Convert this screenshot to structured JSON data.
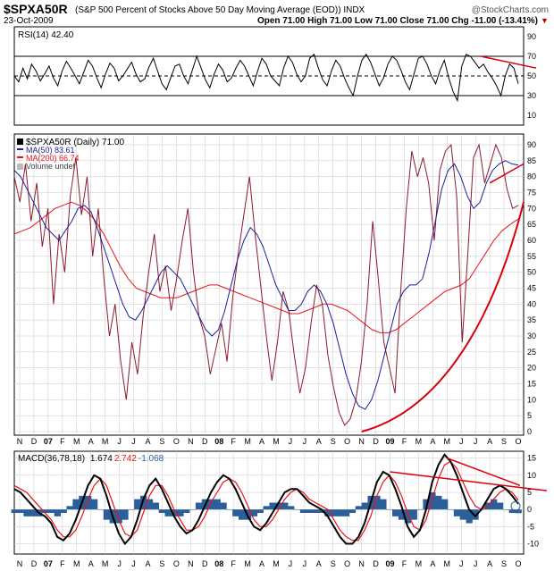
{
  "header": {
    "symbol": "$SPXA50R",
    "description": "(S&P 500 Percent of Stocks Above 50 Day Moving Average (EOD)) INDX",
    "watermark": "@StockCharts.com",
    "date": "23-Oct-2009",
    "ohlc": "Open 71.00  High 71.00  Low 71.00  Close 71.00  Chg -11.00 (-13.41%)",
    "down_marker": "▼"
  },
  "colors": {
    "price": "#8b1a2e",
    "ma50": "#1b1f9a",
    "ma200": "#e8141b",
    "trendline": "#d8000b",
    "macd": "#000000",
    "signal": "#e8141b",
    "histogram": "#2c5f9a",
    "grid": "#c8c8c8"
  },
  "chart_data": [
    {
      "type": "line",
      "panel": "rsi",
      "legend": "RSI(14) 42.40",
      "y_ticks": [
        "90",
        "70",
        "50",
        "30",
        "10"
      ],
      "ylim": [
        0,
        100
      ],
      "reference_lines": [
        70,
        50,
        30
      ],
      "series": [
        {
          "name": "RSI(14)",
          "last": 42.4,
          "values": [
            50,
            44,
            58,
            47,
            62,
            55,
            45,
            52,
            60,
            48,
            40,
            55,
            65,
            58,
            50,
            42,
            54,
            66,
            60,
            48,
            38,
            52,
            63,
            58,
            45,
            50,
            57,
            64,
            52,
            44,
            47,
            59,
            68,
            55,
            42,
            36,
            48,
            60,
            62,
            50,
            42,
            56,
            70,
            58,
            46,
            38,
            52,
            62,
            56,
            44,
            48,
            58,
            66,
            60,
            50,
            40,
            55,
            68,
            62,
            50,
            45,
            40,
            58,
            70,
            64,
            52,
            44,
            50,
            68,
            72,
            58,
            46,
            40,
            55,
            66,
            60,
            48,
            38,
            30,
            50,
            66,
            72,
            64,
            52,
            40,
            48,
            62,
            70,
            66,
            56,
            44,
            36,
            52,
            68,
            70,
            62,
            50,
            42,
            56,
            66,
            48,
            34,
            25,
            60,
            72,
            70,
            64,
            58,
            62,
            54,
            48,
            40,
            30,
            50,
            62,
            58,
            42
          ]
        }
      ]
    },
    {
      "type": "line",
      "panel": "price",
      "legend": [
        "$SPXA50R (Daily) 71.00",
        "MA(50) 83.61",
        "MA(200) 66.74",
        "Volume undef"
      ],
      "y_ticks": [
        "90",
        "85",
        "80",
        "75",
        "70",
        "65",
        "60",
        "55",
        "50",
        "45",
        "40",
        "35",
        "30",
        "25",
        "20",
        "15",
        "10",
        "5",
        "0"
      ],
      "ylim": [
        0,
        90
      ],
      "x_labels": [
        "N",
        "D",
        "07",
        "F",
        "M",
        "A",
        "M",
        "J",
        "J",
        "A",
        "S",
        "O",
        "N",
        "D",
        "08",
        "F",
        "M",
        "A",
        "M",
        "J",
        "J",
        "A",
        "S",
        "O",
        "N",
        "D",
        "09",
        "F",
        "M",
        "A",
        "M",
        "J",
        "J",
        "A",
        "S",
        "O"
      ],
      "series": [
        {
          "name": "$SPXA50R",
          "last": 71.0,
          "values": [
            80,
            72,
            84,
            66,
            78,
            58,
            70,
            40,
            62,
            50,
            74,
            86,
            68,
            80,
            55,
            70,
            48,
            30,
            40,
            22,
            10,
            28,
            18,
            36,
            50,
            62,
            44,
            52,
            38,
            48,
            60,
            70,
            50,
            36,
            30,
            18,
            26,
            34,
            22,
            42,
            56,
            68,
            80,
            62,
            46,
            30,
            16,
            28,
            44,
            38,
            24,
            12,
            20,
            34,
            46,
            40,
            24,
            14,
            6,
            2,
            4,
            10,
            22,
            40,
            66,
            48,
            28,
            20,
            12,
            44,
            70,
            88,
            80,
            86,
            78,
            60,
            82,
            88,
            90,
            74,
            28,
            56,
            86,
            90,
            78,
            84,
            90,
            86,
            76,
            70,
            71
          ]
        },
        {
          "name": "MA(50)",
          "last": 83.61,
          "values": [
            82,
            80,
            76,
            72,
            68,
            64,
            62,
            60,
            63,
            66,
            70,
            71,
            69,
            64,
            58,
            52,
            46,
            40,
            36,
            35,
            38,
            42,
            46,
            50,
            52,
            50,
            48,
            44,
            40,
            36,
            32,
            30,
            32,
            38,
            46,
            54,
            60,
            64,
            62,
            58,
            52,
            46,
            42,
            38,
            38,
            40,
            44,
            46,
            44,
            40,
            34,
            26,
            18,
            12,
            8,
            7,
            10,
            16,
            24,
            32,
            40,
            44,
            46,
            46,
            48,
            56,
            66,
            76,
            82,
            84,
            80,
            74,
            70,
            72,
            78,
            82,
            84,
            85,
            84,
            83.61
          ]
        },
        {
          "name": "MA(200)",
          "last": 66.74,
          "values": [
            62,
            63,
            64,
            66,
            68,
            70,
            71,
            72,
            71,
            69,
            66,
            62,
            57,
            52,
            48,
            45,
            44,
            43,
            42,
            42,
            42,
            43,
            44,
            45,
            46,
            46,
            45,
            44,
            43,
            42,
            41,
            40,
            39,
            38,
            37,
            37,
            38,
            39,
            40,
            40,
            39,
            38,
            36,
            34,
            32,
            31,
            31,
            32,
            34,
            36,
            38,
            40,
            42,
            44,
            45,
            46,
            48,
            52,
            56,
            60,
            63,
            65,
            66.74
          ]
        }
      ],
      "trendlines": [
        {
          "from": [
            "Nov 2008",
            0
          ],
          "to": [
            "Oct 2009",
            72
          ],
          "shape": "curve"
        },
        {
          "from": [
            "Aug 2009",
            78
          ],
          "to": [
            "Oct 2009",
            84
          ],
          "shape": "line"
        }
      ]
    },
    {
      "type": "line",
      "panel": "macd",
      "legend": {
        "label": "MACD(36,78,18)",
        "macd": "1.674",
        "signal": "2.742",
        "hist": "-1.068"
      },
      "y_ticks": [
        "15",
        "10",
        "5",
        "0",
        "-5",
        "-10"
      ],
      "ylim": [
        -13,
        17
      ],
      "x_labels": [
        "N",
        "D",
        "07",
        "F",
        "M",
        "A",
        "M",
        "J",
        "J",
        "A",
        "S",
        "O",
        "N",
        "D",
        "08",
        "F",
        "M",
        "A",
        "M",
        "J",
        "J",
        "A",
        "S",
        "O",
        "N",
        "D",
        "09",
        "F",
        "M",
        "A",
        "M",
        "J",
        "J",
        "A",
        "S",
        "O"
      ],
      "series": [
        {
          "name": "MACD",
          "last": 1.674,
          "values": [
            6,
            5,
            3,
            1,
            -1,
            -2,
            -4,
            -8,
            -9,
            -7,
            -3,
            2,
            7,
            10,
            9,
            4,
            -2,
            -7,
            -10,
            -8,
            -3,
            3,
            7,
            9,
            6,
            2,
            -2,
            -5,
            -7,
            -6,
            -3,
            1,
            5,
            8,
            10,
            9,
            6,
            2,
            -2,
            -5,
            -6,
            -4,
            -1,
            2,
            5,
            6,
            6,
            4,
            2,
            1,
            0,
            -2,
            -5,
            -8,
            -10,
            -10,
            -8,
            -4,
            2,
            8,
            11,
            10,
            6,
            1,
            -5,
            -8,
            -6,
            0,
            8,
            13,
            16,
            14,
            10,
            5,
            0,
            -2,
            0,
            3,
            6,
            7,
            6,
            4,
            1.674
          ]
        },
        {
          "name": "Signal",
          "last": 2.742,
          "values": [
            7,
            6,
            5,
            3,
            1,
            -1,
            -3,
            -6,
            -8,
            -8,
            -6,
            -2,
            3,
            7,
            9,
            7,
            2,
            -3,
            -7,
            -8,
            -6,
            -1,
            4,
            7,
            7,
            4,
            0,
            -3,
            -6,
            -6,
            -5,
            -2,
            2,
            5,
            8,
            9,
            8,
            5,
            1,
            -3,
            -5,
            -5,
            -3,
            0,
            3,
            5,
            6,
            5,
            3,
            2,
            1,
            0,
            -3,
            -6,
            -8,
            -9,
            -9,
            -6,
            -2,
            4,
            8,
            10,
            8,
            4,
            -1,
            -5,
            -6,
            -3,
            3,
            9,
            13,
            14,
            12,
            8,
            4,
            1,
            0,
            1,
            3,
            5,
            6,
            5,
            2.742
          ]
        }
      ],
      "trendlines": [
        {
          "from": [
            "Jan 2009",
            11
          ],
          "to": [
            "Oct 2009",
            5.5
          ]
        },
        {
          "from": [
            "May 2009",
            15
          ],
          "to": [
            "Oct 2009",
            7
          ]
        }
      ]
    }
  ]
}
